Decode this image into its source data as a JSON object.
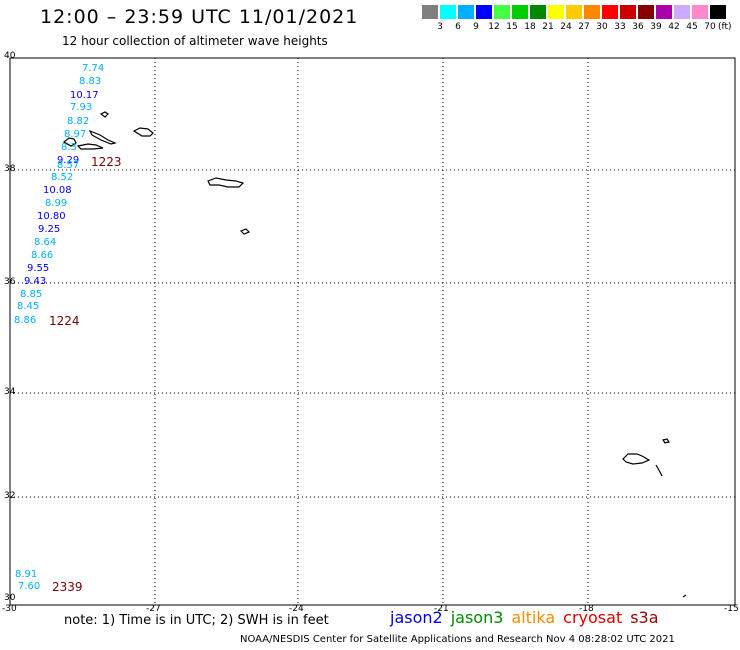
{
  "header": {
    "title": "12:00 – 23:59 UTC 11/01/2021",
    "subtitle": "12 hour collection of altimeter wave heights"
  },
  "legend": {
    "labels": [
      "3",
      "6",
      "9",
      "12",
      "15",
      "18",
      "21",
      "24",
      "27",
      "30",
      "33",
      "36",
      "39",
      "42",
      "45",
      "70"
    ],
    "unit": "(ft)",
    "colors": [
      "#7f7f7f",
      "#00ffff",
      "#00b0ff",
      "#0000ff",
      "#44ff44",
      "#00cc00",
      "#008800",
      "#ffff00",
      "#ffcc00",
      "#ff8800",
      "#ff0000",
      "#cc0000",
      "#880000",
      "#aa00aa",
      "#ccaaff",
      "#ff88cc",
      "#000000"
    ]
  },
  "axes": {
    "lat_labels": [
      "40",
      "38",
      "36",
      "34",
      "32",
      "30"
    ],
    "lon_labels": [
      "-30",
      "-27",
      "-24",
      "-21",
      "-18",
      "-15"
    ]
  },
  "wave_heights": [
    {
      "text": "7.74",
      "color": "#00b0ff"
    },
    {
      "text": "8.83",
      "color": "#00b0ff"
    },
    {
      "text": "10.17",
      "color": "#0000ff"
    },
    {
      "text": "7.93",
      "color": "#00b0ff"
    },
    {
      "text": "8.82",
      "color": "#00b0ff"
    },
    {
      "text": "8.97",
      "color": "#00b0ff"
    },
    {
      "text": "8.3",
      "color": "#00b0ff"
    },
    {
      "text": "9.29",
      "color": "#0000ff"
    },
    {
      "text": "8.57",
      "color": "#00b0ff"
    },
    {
      "text": "8.52",
      "color": "#00b0ff"
    },
    {
      "text": "10.08",
      "color": "#0000ff"
    },
    {
      "text": "8.99",
      "color": "#00b0ff"
    },
    {
      "text": "10.80",
      "color": "#0000ff"
    },
    {
      "text": "9.25",
      "color": "#0000ff"
    },
    {
      "text": "8.64",
      "color": "#00b0ff"
    },
    {
      "text": "8.66",
      "color": "#00b0ff"
    },
    {
      "text": "9.55",
      "color": "#0000ff"
    },
    {
      "text": "9.43",
      "color": "#0000ff"
    },
    {
      "text": "8.85",
      "color": "#00b0ff"
    },
    {
      "text": "8.45",
      "color": "#00b0ff"
    },
    {
      "text": "8.86",
      "color": "#00b0ff"
    },
    {
      "text": "8.91",
      "color": "#00b0ff"
    },
    {
      "text": "7.60",
      "color": "#00b0ff"
    }
  ],
  "pass_times": [
    "1223",
    "1224",
    "2339"
  ],
  "note": "note: 1) Time is in UTC; 2) SWH is in feet",
  "satellites": [
    {
      "name": "jason2",
      "color": "#0000dd"
    },
    {
      "name": "jason3",
      "color": "#008800"
    },
    {
      "name": "altika",
      "color": "#ff8800"
    },
    {
      "name": "cryosat",
      "color": "#dd0000"
    },
    {
      "name": "s3a",
      "color": "#990000"
    }
  ],
  "footer": "NOAA/NESDIS Center for Satellite Applications and Research    Nov  4 08:28:02 UTC 2021"
}
